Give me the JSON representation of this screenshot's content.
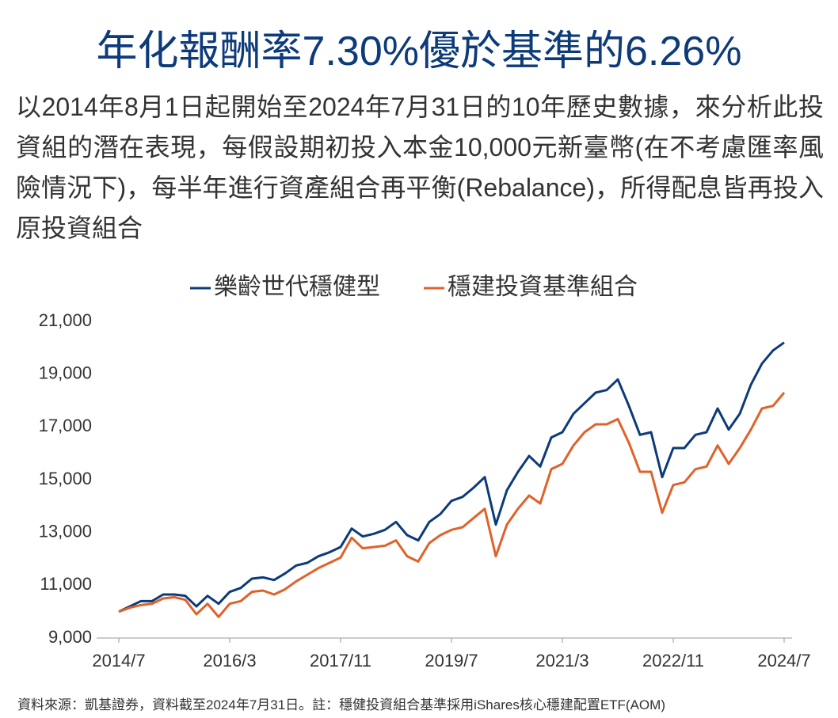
{
  "chart_data": {
    "type": "line",
    "title": "年化報酬率7.30%優於基準的6.26%",
    "subtitle": "以2014年8月1日起開始至2024年7月31日的10年歷史數據，來分析此投資組的潛在表現，每假設期初投入本金10,000元新臺幣(在不考慮匯率風險情況下)，每半年進行資產組合再平衡(Rebalance)，所得配息皆再投入原投資組合",
    "note": "資料來源：凱基證券，資料截至2024年7月31日。註：穩健投資組合基準採用iShares核心穩建配置ETF(AOM)",
    "categories": [
      "2014/7",
      null,
      null,
      null,
      null,
      null,
      null,
      null,
      null,
      null,
      "2016/3",
      null,
      null,
      null,
      null,
      null,
      null,
      null,
      null,
      null,
      "2017/11",
      null,
      null,
      null,
      null,
      null,
      null,
      null,
      null,
      null,
      "2019/7",
      null,
      null,
      null,
      null,
      null,
      null,
      null,
      null,
      null,
      "2021/3",
      null,
      null,
      null,
      null,
      null,
      null,
      null,
      null,
      null,
      "2022/11",
      null,
      null,
      null,
      null,
      null,
      null,
      null,
      null,
      null,
      "2024/7"
    ],
    "series": [
      {
        "name": "樂齡世代穩健型",
        "color": "#0d3b7a",
        "values": [
          10000,
          10200,
          10400,
          10400,
          10650,
          10650,
          10600,
          10200,
          10600,
          10300,
          10750,
          10900,
          11250,
          11300,
          11200,
          11450,
          11750,
          11850,
          12100,
          12250,
          12450,
          13150,
          12850,
          12950,
          13100,
          13400,
          12900,
          12700,
          13400,
          13700,
          14200,
          14350,
          14700,
          15100,
          13300,
          14600,
          15300,
          15900,
          15500,
          16600,
          16800,
          17500,
          17900,
          18300,
          18400,
          18800,
          17800,
          16700,
          16800,
          15100,
          16200,
          16200,
          16700,
          16800,
          17700,
          16900,
          17500,
          18600,
          19400,
          19900,
          20200
        ]
      },
      {
        "name": "穩建投資基準組合",
        "color": "#e0622a",
        "values": [
          10000,
          10150,
          10250,
          10300,
          10500,
          10550,
          10450,
          9900,
          10300,
          9800,
          10300,
          10400,
          10750,
          10800,
          10650,
          10850,
          11150,
          11400,
          11650,
          11850,
          12050,
          12800,
          12400,
          12450,
          12500,
          12700,
          12100,
          11900,
          12600,
          12900,
          13100,
          13200,
          13550,
          13900,
          12100,
          13300,
          13900,
          14400,
          14100,
          15400,
          15600,
          16300,
          16800,
          17100,
          17100,
          17300,
          16400,
          15300,
          15300,
          13750,
          14800,
          14900,
          15400,
          15500,
          16300,
          15600,
          16200,
          16900,
          17700,
          17800,
          18300
        ]
      }
    ],
    "ylim": [
      9000,
      21000
    ],
    "yticks": [
      {
        "value": 9000,
        "label": "9,000"
      },
      {
        "value": 11000,
        "label": "11,000"
      },
      {
        "value": 13000,
        "label": "13,000"
      },
      {
        "value": 15000,
        "label": "15,000"
      },
      {
        "value": 17000,
        "label": "17,000"
      },
      {
        "value": 19000,
        "label": "19,000"
      },
      {
        "value": 21000,
        "label": "21,000"
      }
    ],
    "grid": false
  }
}
